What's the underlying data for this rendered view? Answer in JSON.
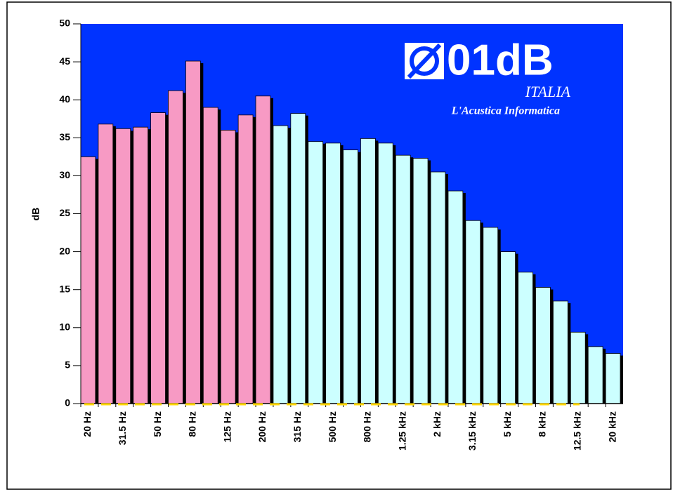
{
  "chart_data": {
    "type": "bar",
    "ylabel": "dB",
    "annotations": [
      "01dB",
      "ITALIA",
      "L'Acustica Informatica"
    ],
    "categories": [
      "20 Hz",
      null,
      "31.5 Hz",
      null,
      "50 Hz",
      null,
      "80 Hz",
      null,
      "125 Hz",
      null,
      "200 Hz",
      null,
      "315 Hz",
      null,
      "500 Hz",
      null,
      "800 Hz",
      null,
      "1.25 kHz",
      null,
      "2 kHz",
      null,
      "3.15 kHz",
      null,
      "5 kHz",
      null,
      "8 kHz",
      null,
      "12.5 kHz",
      null,
      "20 kHz"
    ],
    "values": [
      32.5,
      36.8,
      36.2,
      36.4,
      38.3,
      41.2,
      45.1,
      39,
      36,
      38,
      40.5,
      36.6,
      38.2,
      34.5,
      34.3,
      33.4,
      34.9,
      34.3,
      32.7,
      32.3,
      30.5,
      28,
      24.1,
      23.2,
      20,
      17.3,
      15.3,
      13.5,
      9.4,
      7.5,
      6.6
    ],
    "colors": [
      "#f79ac4",
      "#f79ac4",
      "#f79ac4",
      "#f79ac4",
      "#f79ac4",
      "#f79ac4",
      "#f79ac4",
      "#f79ac4",
      "#f79ac4",
      "#f79ac4",
      "#f79ac4",
      "#ccffff",
      "#ccffff",
      "#ccffff",
      "#ccffff",
      "#ccffff",
      "#ccffff",
      "#ccffff",
      "#ccffff",
      "#ccffff",
      "#ccffff",
      "#ccffff",
      "#ccffff",
      "#ccffff",
      "#ccffff",
      "#ccffff",
      "#ccffff",
      "#ccffff",
      "#ccffff",
      "#ccffff",
      "#ccffff"
    ],
    "background": "#0033ff",
    "ylim": [
      0,
      50
    ],
    "yticks": [
      0,
      5,
      10,
      15,
      20,
      25,
      30,
      35,
      40,
      45,
      50
    ]
  }
}
